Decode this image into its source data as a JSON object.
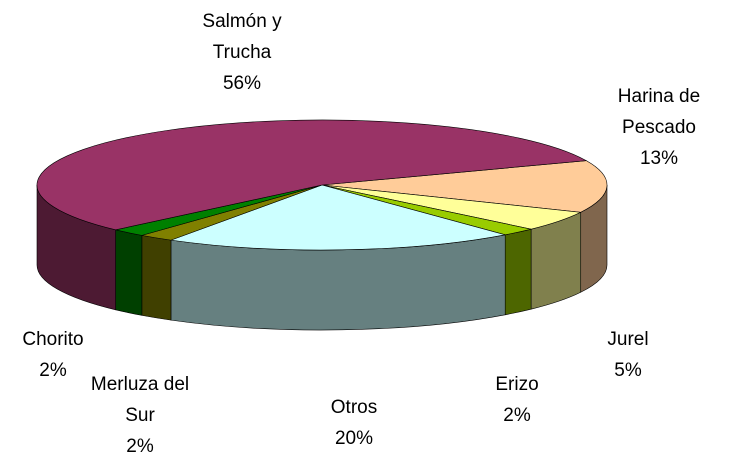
{
  "chart_data": {
    "type": "pie3d",
    "categories": [
      "Harina de Pescado",
      "Jurel",
      "Erizo",
      "Otros",
      "Merluza del Sur",
      "Chorito",
      "Salmón y Trucha"
    ],
    "values": [
      13,
      5,
      2,
      20,
      2,
      2,
      56
    ],
    "value_labels": [
      "13%",
      "5%",
      "2%",
      "20%",
      "2%",
      "2%",
      "56%"
    ],
    "colors": [
      "#ffcc99",
      "#ffff99",
      "#99cc00",
      "#ccffff",
      "#808000",
      "#008000",
      "#993366"
    ]
  }
}
